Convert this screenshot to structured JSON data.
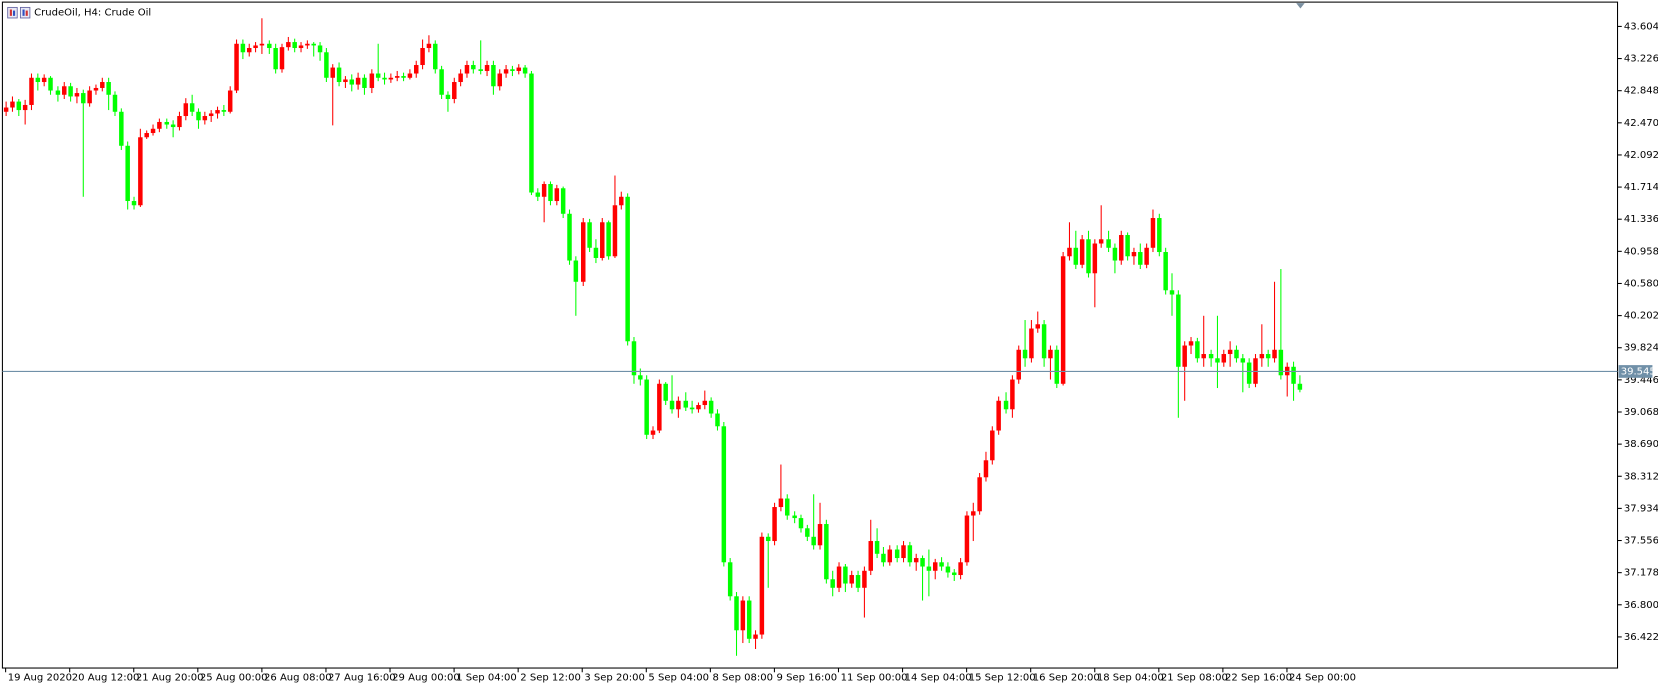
{
  "chart_data": {
    "type": "candlestick",
    "title": "CrudeOil, H4:  Crude Oil",
    "up_color": "#ff0000",
    "down_color": "#00ff00",
    "price_line": 39.545,
    "price_line_color": "#7090a8",
    "ylim": [
      36.056,
      43.89
    ],
    "yticks": [
      43.604,
      43.226,
      42.848,
      {
        "value": 42.47,
        "label": "42.470"
      },
      42.092,
      41.714,
      41.336,
      40.958,
      {
        "value": 40.58,
        "label": "40.580"
      },
      40.202,
      39.824,
      39.446,
      39.068,
      {
        "value": 38.69,
        "label": "38.690"
      },
      38.312,
      37.934,
      37.556,
      37.178,
      {
        "value": 36.8,
        "label": "36.800"
      },
      36.422
    ],
    "xlim": [
      -0.5,
      251.6
    ],
    "xticks": [
      {
        "value": 0,
        "label": "19 Aug 2020"
      },
      {
        "value": 10,
        "label": "20 Aug 12:00"
      },
      {
        "value": 20,
        "label": "21 Aug 20:00"
      },
      {
        "value": 30,
        "label": "25 Aug 00:00"
      },
      {
        "value": 40,
        "label": "26 Aug 08:00"
      },
      {
        "value": 50,
        "label": "27 Aug 16:00"
      },
      {
        "value": 60,
        "label": "29 Aug 00:00"
      },
      {
        "value": 70,
        "label": "1 Sep 04:00"
      },
      {
        "value": 80,
        "label": "2 Sep 12:00"
      },
      {
        "value": 90,
        "label": "3 Sep 20:00"
      },
      {
        "value": 100,
        "label": "5 Sep 04:00"
      },
      {
        "value": 110,
        "label": "8 Sep 08:00"
      },
      {
        "value": 120,
        "label": "9 Sep 16:00"
      },
      {
        "value": 130,
        "label": "11 Sep 00:00"
      },
      {
        "value": 140,
        "label": "14 Sep 04:00"
      },
      {
        "value": 150,
        "label": "15 Sep 12:00"
      },
      {
        "value": 160,
        "label": "16 Sep 20:00"
      },
      {
        "value": 170,
        "label": "18 Sep 04:00"
      },
      {
        "value": 180,
        "label": "21 Sep 08:00"
      },
      {
        "value": 190,
        "label": "22 Sep 16:00"
      },
      {
        "value": 200,
        "label": "24 Sep 00:00"
      }
    ],
    "candles": [
      [
        42.6,
        42.72,
        42.55,
        42.65
      ],
      [
        42.65,
        42.78,
        42.6,
        42.72
      ],
      [
        42.72,
        42.75,
        42.55,
        42.62
      ],
      [
        42.62,
        42.74,
        42.45,
        42.68
      ],
      [
        42.68,
        43.05,
        42.62,
        43.0
      ],
      [
        43.0,
        43.05,
        42.85,
        42.95
      ],
      [
        42.95,
        43.04,
        42.9,
        43.0
      ],
      [
        43.0,
        43.02,
        42.8,
        42.85
      ],
      [
        42.85,
        42.9,
        42.72,
        42.8
      ],
      [
        42.8,
        42.95,
        42.75,
        42.9
      ],
      [
        42.9,
        42.94,
        42.72,
        42.78
      ],
      [
        42.78,
        42.88,
        42.7,
        42.82
      ],
      [
        42.82,
        42.86,
        41.6,
        42.7
      ],
      [
        42.7,
        42.9,
        42.66,
        42.85
      ],
      [
        42.85,
        42.92,
        42.8,
        42.88
      ],
      [
        42.88,
        43.0,
        42.84,
        42.95
      ],
      [
        42.95,
        43.0,
        42.62,
        42.8
      ],
      [
        42.8,
        42.84,
        42.55,
        42.6
      ],
      [
        42.6,
        42.64,
        42.15,
        42.2
      ],
      [
        42.2,
        42.25,
        41.45,
        41.55
      ],
      [
        41.55,
        41.6,
        41.45,
        41.5
      ],
      [
        41.5,
        42.4,
        41.48,
        42.3
      ],
      [
        42.3,
        42.38,
        42.28,
        42.35
      ],
      [
        42.35,
        42.45,
        42.32,
        42.4
      ],
      [
        42.4,
        42.52,
        42.36,
        42.48
      ],
      [
        42.48,
        42.52,
        42.4,
        42.45
      ],
      [
        42.45,
        42.5,
        42.3,
        42.42
      ],
      [
        42.42,
        42.6,
        42.38,
        42.55
      ],
      [
        42.55,
        42.76,
        42.5,
        42.7
      ],
      [
        42.7,
        42.8,
        42.55,
        42.6
      ],
      [
        42.6,
        42.64,
        42.4,
        42.5
      ],
      [
        42.5,
        42.6,
        42.45,
        42.55
      ],
      [
        42.55,
        42.62,
        42.48,
        42.58
      ],
      [
        42.58,
        42.66,
        42.52,
        42.62
      ],
      [
        42.62,
        42.68,
        42.55,
        42.6
      ],
      [
        42.6,
        42.9,
        42.58,
        42.85
      ],
      [
        42.85,
        43.45,
        42.82,
        43.4
      ],
      [
        43.4,
        43.45,
        43.22,
        43.3
      ],
      [
        43.3,
        43.4,
        43.25,
        43.35
      ],
      [
        43.35,
        43.42,
        43.3,
        43.38
      ],
      [
        43.38,
        43.7,
        43.28,
        43.4
      ],
      [
        43.4,
        43.44,
        43.28,
        43.35
      ],
      [
        43.35,
        43.4,
        43.05,
        43.1
      ],
      [
        43.1,
        43.4,
        43.06,
        43.36
      ],
      [
        43.36,
        43.48,
        43.32,
        43.42
      ],
      [
        43.42,
        43.46,
        43.3,
        43.35
      ],
      [
        43.35,
        43.42,
        43.3,
        43.38
      ],
      [
        43.38,
        43.44,
        43.34,
        43.4
      ],
      [
        43.4,
        43.42,
        43.25,
        43.38
      ],
      [
        43.38,
        43.42,
        43.2,
        43.3
      ],
      [
        43.3,
        43.35,
        42.95,
        43.0
      ],
      [
        43.0,
        43.16,
        42.44,
        43.12
      ],
      [
        43.12,
        43.18,
        42.9,
        42.95
      ],
      [
        42.95,
        43.02,
        42.88,
        42.98
      ],
      [
        42.98,
        43.04,
        42.84,
        42.92
      ],
      [
        42.92,
        43.06,
        42.86,
        43.0
      ],
      [
        43.0,
        43.04,
        42.8,
        42.88
      ],
      [
        42.88,
        43.1,
        42.82,
        43.05
      ],
      [
        43.05,
        43.4,
        42.96,
        43.0
      ],
      [
        43.0,
        43.06,
        42.92,
        42.98
      ],
      [
        42.98,
        43.05,
        42.94,
        43.0
      ],
      [
        43.0,
        43.08,
        42.96,
        43.02
      ],
      [
        43.02,
        43.06,
        42.96,
        43.0
      ],
      [
        43.0,
        43.1,
        42.98,
        43.05
      ],
      [
        43.05,
        43.2,
        43.0,
        43.15
      ],
      [
        43.15,
        43.45,
        43.1,
        43.35
      ],
      [
        43.35,
        43.5,
        43.3,
        43.4
      ],
      [
        43.4,
        43.44,
        43.05,
        43.1
      ],
      [
        43.1,
        43.14,
        42.75,
        42.8
      ],
      [
        42.8,
        42.84,
        42.6,
        42.75
      ],
      [
        42.75,
        43.0,
        42.7,
        42.95
      ],
      [
        42.95,
        43.1,
        42.9,
        43.05
      ],
      [
        43.05,
        43.2,
        43.0,
        43.15
      ],
      [
        43.15,
        43.2,
        43.05,
        43.1
      ],
      [
        43.1,
        43.44,
        43.04,
        43.08
      ],
      [
        43.08,
        43.2,
        43.02,
        43.15
      ],
      [
        43.15,
        43.2,
        42.8,
        42.9
      ],
      [
        42.9,
        43.1,
        42.85,
        43.05
      ],
      [
        43.05,
        43.15,
        43.0,
        43.1
      ],
      [
        43.1,
        43.14,
        43.02,
        43.08
      ],
      [
        43.08,
        43.16,
        43.04,
        43.12
      ],
      [
        43.12,
        43.15,
        43.0,
        43.05
      ],
      [
        43.05,
        43.08,
        41.62,
        41.65
      ],
      [
        41.65,
        41.7,
        41.55,
        41.6
      ],
      [
        41.6,
        41.78,
        41.3,
        41.75
      ],
      [
        41.75,
        41.78,
        41.5,
        41.55
      ],
      [
        41.55,
        41.74,
        41.5,
        41.7
      ],
      [
        41.7,
        41.72,
        41.35,
        41.4
      ],
      [
        41.4,
        41.45,
        40.8,
        40.85
      ],
      [
        40.85,
        40.9,
        40.2,
        40.6
      ],
      [
        40.6,
        41.35,
        40.55,
        41.3
      ],
      [
        41.3,
        41.34,
        40.95,
        41.0
      ],
      [
        41.0,
        41.1,
        40.82,
        40.88
      ],
      [
        40.88,
        41.35,
        40.85,
        41.3
      ],
      [
        41.3,
        41.32,
        40.86,
        40.9
      ],
      [
        40.9,
        41.85,
        40.88,
        41.5
      ],
      [
        41.5,
        41.66,
        41.45,
        41.6
      ],
      [
        41.6,
        41.64,
        39.85,
        39.9
      ],
      [
        39.9,
        39.95,
        39.4,
        39.5
      ],
      [
        39.5,
        39.58,
        39.38,
        39.45
      ],
      [
        39.45,
        39.5,
        38.75,
        38.8
      ],
      [
        38.8,
        38.9,
        38.75,
        38.85
      ],
      [
        38.85,
        39.45,
        38.82,
        39.4
      ],
      [
        39.4,
        39.42,
        39.15,
        39.2
      ],
      [
        39.2,
        39.5,
        39.05,
        39.1
      ],
      [
        39.1,
        39.25,
        39.0,
        39.2
      ],
      [
        39.2,
        39.3,
        39.08,
        39.12
      ],
      [
        39.12,
        39.2,
        39.05,
        39.1
      ],
      [
        39.1,
        39.18,
        39.06,
        39.15
      ],
      [
        39.15,
        39.32,
        39.1,
        39.2
      ],
      [
        39.2,
        39.24,
        39.0,
        39.05
      ],
      [
        39.05,
        39.1,
        38.85,
        38.9
      ],
      [
        38.9,
        38.95,
        37.25,
        37.3
      ],
      [
        37.3,
        37.35,
        36.85,
        36.9
      ],
      [
        36.9,
        36.95,
        36.2,
        36.5
      ],
      [
        36.5,
        36.9,
        36.35,
        36.85
      ],
      [
        36.85,
        36.9,
        36.35,
        36.4
      ],
      [
        36.4,
        36.5,
        36.28,
        36.45
      ],
      [
        36.45,
        37.65,
        36.4,
        37.6
      ],
      [
        37.6,
        37.64,
        37.0,
        37.55
      ],
      [
        37.55,
        38.0,
        37.5,
        37.95
      ],
      [
        37.95,
        38.45,
        37.9,
        38.05
      ],
      [
        38.05,
        38.1,
        37.8,
        37.85
      ],
      [
        37.85,
        37.9,
        37.76,
        37.82
      ],
      [
        37.82,
        37.86,
        37.65,
        37.7
      ],
      [
        37.7,
        37.74,
        37.55,
        37.6
      ],
      [
        37.6,
        38.1,
        37.45,
        37.5
      ],
      [
        37.5,
        38.0,
        37.45,
        37.75
      ],
      [
        37.75,
        37.8,
        37.05,
        37.1
      ],
      [
        37.1,
        37.2,
        36.9,
        37.0
      ],
      [
        37.0,
        37.3,
        36.95,
        37.25
      ],
      [
        37.25,
        37.28,
        36.95,
        37.05
      ],
      [
        37.05,
        37.2,
        37.0,
        37.15
      ],
      [
        37.15,
        37.2,
        36.95,
        37.0
      ],
      [
        37.0,
        37.25,
        36.65,
        37.2
      ],
      [
        37.2,
        37.8,
        37.15,
        37.55
      ],
      [
        37.55,
        37.7,
        37.35,
        37.4
      ],
      [
        37.4,
        37.48,
        37.25,
        37.3
      ],
      [
        37.3,
        37.5,
        37.26,
        37.45
      ],
      [
        37.45,
        37.5,
        37.3,
        37.35
      ],
      [
        37.35,
        37.55,
        37.3,
        37.5
      ],
      [
        37.5,
        37.54,
        37.25,
        37.3
      ],
      [
        37.3,
        37.4,
        37.2,
        37.35
      ],
      [
        37.35,
        37.38,
        36.85,
        37.25
      ],
      [
        37.25,
        37.45,
        36.9,
        37.2
      ],
      [
        37.2,
        37.34,
        37.1,
        37.3
      ],
      [
        37.3,
        37.36,
        37.2,
        37.25
      ],
      [
        37.25,
        37.3,
        37.12,
        37.18
      ],
      [
        37.18,
        37.22,
        37.08,
        37.15
      ],
      [
        37.15,
        37.35,
        37.1,
        37.3
      ],
      [
        37.3,
        37.9,
        37.26,
        37.85
      ],
      [
        37.85,
        38.0,
        37.55,
        37.9
      ],
      [
        37.9,
        38.35,
        37.86,
        38.3
      ],
      [
        38.3,
        38.6,
        38.25,
        38.5
      ],
      [
        38.5,
        38.9,
        38.45,
        38.85
      ],
      [
        38.85,
        39.25,
        38.8,
        39.2
      ],
      [
        39.2,
        39.3,
        39.05,
        39.1
      ],
      [
        39.1,
        39.5,
        39.0,
        39.45
      ],
      [
        39.45,
        39.85,
        39.4,
        39.8
      ],
      [
        39.8,
        40.15,
        39.6,
        39.7
      ],
      [
        39.7,
        40.15,
        39.65,
        40.05
      ],
      [
        40.05,
        40.25,
        40.0,
        40.1
      ],
      [
        40.1,
        40.15,
        39.6,
        39.7
      ],
      [
        39.7,
        39.85,
        39.45,
        39.8
      ],
      [
        39.8,
        39.85,
        39.35,
        39.4
      ],
      [
        39.4,
        40.95,
        39.38,
        40.9
      ],
      [
        40.9,
        41.3,
        40.85,
        41.0
      ],
      [
        41.0,
        41.2,
        40.75,
        40.8
      ],
      [
        40.8,
        41.15,
        40.76,
        41.1
      ],
      [
        41.1,
        41.2,
        40.65,
        40.7
      ],
      [
        40.7,
        41.1,
        40.3,
        41.05
      ],
      [
        41.05,
        41.5,
        41.0,
        41.1
      ],
      [
        41.1,
        41.2,
        40.95,
        41.0
      ],
      [
        41.0,
        41.05,
        40.7,
        40.85
      ],
      [
        40.85,
        41.2,
        40.8,
        41.15
      ],
      [
        41.15,
        41.18,
        40.85,
        40.9
      ],
      [
        40.9,
        41.0,
        40.8,
        40.95
      ],
      [
        40.95,
        41.05,
        40.75,
        40.8
      ],
      [
        40.8,
        41.05,
        40.76,
        41.0
      ],
      [
        41.0,
        41.45,
        40.95,
        41.35
      ],
      [
        41.35,
        41.4,
        40.9,
        40.95
      ],
      [
        40.95,
        41.0,
        40.45,
        40.5
      ],
      [
        40.5,
        40.7,
        40.2,
        40.45
      ],
      [
        40.45,
        40.5,
        39.0,
        39.6
      ],
      [
        39.6,
        39.9,
        39.2,
        39.85
      ],
      [
        39.85,
        39.95,
        39.75,
        39.9
      ],
      [
        39.9,
        39.94,
        39.65,
        39.7
      ],
      [
        39.7,
        40.2,
        39.6,
        39.75
      ],
      [
        39.75,
        39.8,
        39.6,
        39.7
      ],
      [
        39.7,
        40.2,
        39.35,
        39.65
      ],
      [
        39.65,
        39.8,
        39.6,
        39.75
      ],
      [
        39.75,
        39.9,
        39.6,
        39.8
      ],
      [
        39.8,
        39.85,
        39.65,
        39.7
      ],
      [
        39.7,
        39.75,
        39.3,
        39.65
      ],
      [
        39.65,
        39.7,
        39.35,
        39.4
      ],
      [
        39.4,
        39.75,
        39.36,
        39.7
      ],
      [
        39.7,
        40.1,
        39.6,
        39.75
      ],
      [
        39.75,
        39.8,
        39.6,
        39.7
      ],
      [
        39.7,
        40.6,
        39.65,
        39.8
      ],
      [
        39.8,
        40.75,
        39.45,
        39.5
      ],
      [
        39.5,
        39.65,
        39.25,
        39.6
      ],
      [
        39.6,
        39.66,
        39.2,
        39.4
      ],
      [
        39.4,
        39.5,
        39.3,
        39.33
      ]
    ]
  }
}
